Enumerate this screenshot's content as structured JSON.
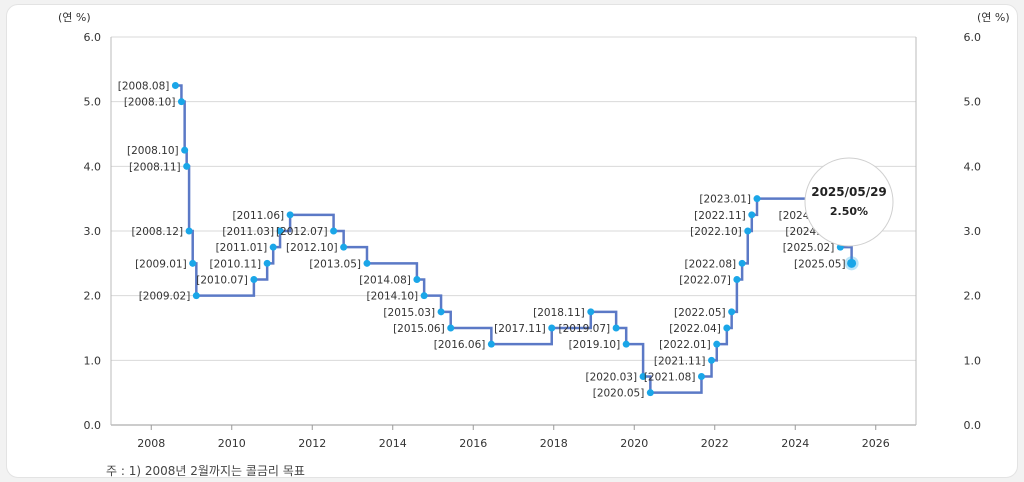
{
  "chart_data": {
    "type": "line",
    "title": "",
    "y_unit_left": "(연 %)",
    "y_unit_right": "(연 %)",
    "ylim": [
      0,
      6
    ],
    "y_ticks": [
      "0.0",
      "1.0",
      "2.0",
      "3.0",
      "4.0",
      "5.0",
      "6.0"
    ],
    "xlim": [
      2007,
      2027
    ],
    "x_ticks": [
      "2008",
      "2010",
      "2012",
      "2014",
      "2016",
      "2018",
      "2020",
      "2022",
      "2024",
      "2026"
    ],
    "grid": true,
    "step": true,
    "series_color": "#5b79c6",
    "marker_color": "#1aa6e8",
    "points": [
      {
        "label": "[2008.08]",
        "t": 2008.6,
        "y": 5.25
      },
      {
        "label": "[2008.10]",
        "t": 2008.75,
        "y": 5.0
      },
      {
        "label": "[2008.10]",
        "t": 2008.83,
        "y": 4.25
      },
      {
        "label": "[2008.11]",
        "t": 2008.88,
        "y": 4.0
      },
      {
        "label": "[2008.12]",
        "t": 2008.94,
        "y": 3.0
      },
      {
        "label": "[2009.01]",
        "t": 2009.03,
        "y": 2.5
      },
      {
        "label": "[2009.02]",
        "t": 2009.12,
        "y": 2.0
      },
      {
        "label": "[2010.07]",
        "t": 2010.55,
        "y": 2.25
      },
      {
        "label": "[2010.11]",
        "t": 2010.88,
        "y": 2.5
      },
      {
        "label": "[2011.01]",
        "t": 2011.03,
        "y": 2.75
      },
      {
        "label": "[2011.03]",
        "t": 2011.2,
        "y": 3.0
      },
      {
        "label": "[2011.06]",
        "t": 2011.45,
        "y": 3.25
      },
      {
        "label": "[2012.07]",
        "t": 2012.53,
        "y": 3.0
      },
      {
        "label": "[2012.10]",
        "t": 2012.78,
        "y": 2.75
      },
      {
        "label": "[2013.05]",
        "t": 2013.36,
        "y": 2.5
      },
      {
        "label": "[2014.08]",
        "t": 2014.6,
        "y": 2.25
      },
      {
        "label": "[2014.10]",
        "t": 2014.78,
        "y": 2.0
      },
      {
        "label": "[2015.03]",
        "t": 2015.2,
        "y": 1.75
      },
      {
        "label": "[2015.06]",
        "t": 2015.44,
        "y": 1.5
      },
      {
        "label": "[2016.06]",
        "t": 2016.45,
        "y": 1.25
      },
      {
        "label": "[2017.11]",
        "t": 2017.95,
        "y": 1.5
      },
      {
        "label": "[2018.11]",
        "t": 2018.92,
        "y": 1.75
      },
      {
        "label": "[2019.07]",
        "t": 2019.55,
        "y": 1.5
      },
      {
        "label": "[2019.10]",
        "t": 2019.8,
        "y": 1.25
      },
      {
        "label": "[2020.03]",
        "t": 2020.22,
        "y": 0.75
      },
      {
        "label": "[2020.05]",
        "t": 2020.4,
        "y": 0.5
      },
      {
        "label": "[2021.08]",
        "t": 2021.67,
        "y": 0.75
      },
      {
        "label": "[2021.11]",
        "t": 2021.92,
        "y": 1.0
      },
      {
        "label": "[2022.01]",
        "t": 2022.05,
        "y": 1.25
      },
      {
        "label": "[2022.04]",
        "t": 2022.3,
        "y": 1.5
      },
      {
        "label": "[2022.05]",
        "t": 2022.42,
        "y": 1.75
      },
      {
        "label": "[2022.07]",
        "t": 2022.55,
        "y": 2.25
      },
      {
        "label": "[2022.08]",
        "t": 2022.68,
        "y": 2.5
      },
      {
        "label": "[2022.10]",
        "t": 2022.82,
        "y": 3.0
      },
      {
        "label": "[2022.11]",
        "t": 2022.92,
        "y": 3.25
      },
      {
        "label": "[2023.01]",
        "t": 2023.05,
        "y": 3.5
      },
      {
        "label": "[2024.1",
        "t": 2024.75,
        "y": 3.25
      },
      {
        "label": "[2024.1",
        "t": 2024.92,
        "y": 3.0
      },
      {
        "label": "[2025.02]",
        "t": 2025.12,
        "y": 2.75
      },
      {
        "label": "[2025.05]",
        "t": 2025.4,
        "y": 2.5
      }
    ],
    "tooltip": {
      "date": "2025/05/29",
      "value": "2.50%"
    },
    "footnote": "주 : 1) 2008년 2월까지는 콜금리 목표"
  }
}
